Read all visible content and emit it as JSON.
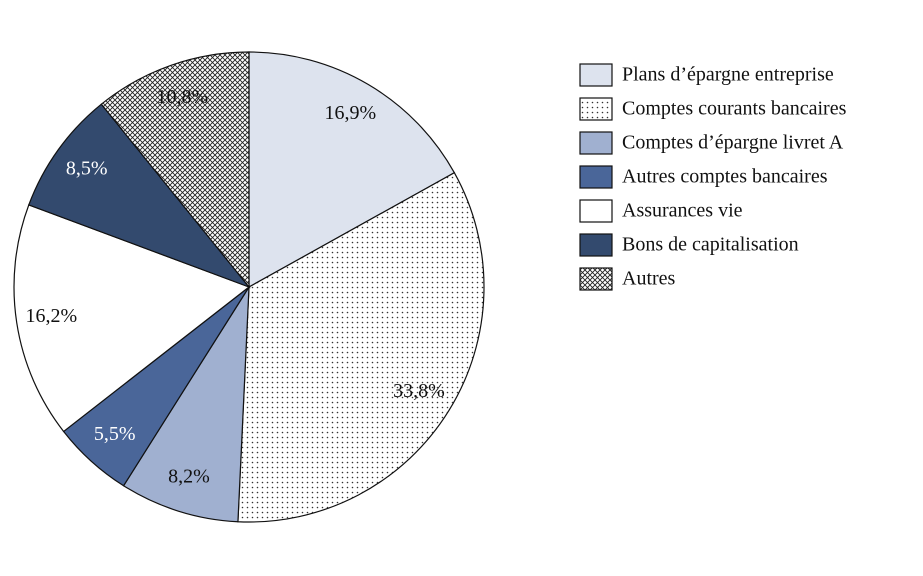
{
  "chart_data": {
    "type": "pie",
    "categories": [
      "Plans d’épargne entreprise",
      "Comptes courants bancaires",
      "Comptes d’épargne livret A",
      "Autres comptes bancaires",
      "Assurances vie",
      "Bons de capitalisation",
      "Autres"
    ],
    "values": [
      16.9,
      33.8,
      8.2,
      5.5,
      16.2,
      8.5,
      10.8
    ],
    "value_labels": [
      "16,9%",
      "33,8%",
      "8,2%",
      "5,5%",
      "16,2%",
      "8,5%",
      "10,8%"
    ],
    "colors": [
      "#dde3ee",
      "dots",
      "#a0b0d0",
      "#4a6699",
      "#ffffff",
      "#334a6e",
      "crosshatch"
    ],
    "legend": "right"
  }
}
